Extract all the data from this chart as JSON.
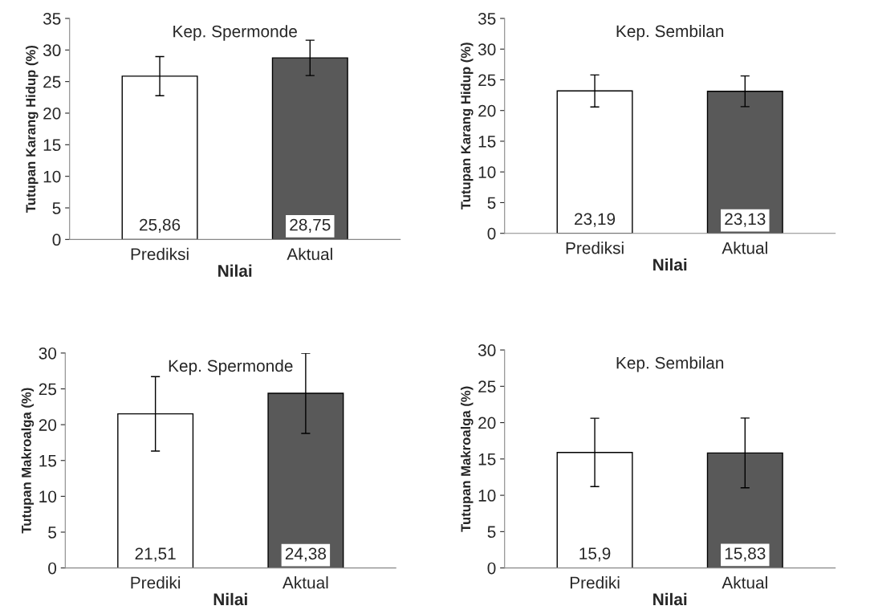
{
  "chart_data": [
    {
      "type": "bar",
      "title": "Kep. Spermonde",
      "xlabel": "Nilai",
      "ylabel": "Tutupan Karang Hidup (%)",
      "categories": [
        "Prediksi",
        "Aktual"
      ],
      "values": [
        25.86,
        28.75
      ],
      "colors": [
        "#ffffff",
        "#595959"
      ],
      "errors": [
        3.1,
        2.8
      ],
      "value_labels": [
        "25,86",
        "28,75"
      ],
      "ylim": [
        0,
        35
      ],
      "yticks": [
        0,
        5,
        10,
        15,
        20,
        25,
        30,
        35
      ]
    },
    {
      "type": "bar",
      "title": "Kep. Sembilan",
      "xlabel": "Nilai",
      "ylabel": "Tutupan Karang Hidup (%)",
      "categories": [
        "Prediksi",
        "Aktual"
      ],
      "values": [
        23.19,
        23.13
      ],
      "colors": [
        "#ffffff",
        "#595959"
      ],
      "errors": [
        2.6,
        2.5
      ],
      "value_labels": [
        "23,19",
        "23,13"
      ],
      "ylim": [
        0,
        35
      ],
      "yticks": [
        0,
        5,
        10,
        15,
        20,
        25,
        30,
        35
      ]
    },
    {
      "type": "bar",
      "title": "Kep. Spermonde",
      "xlabel": "Nilai",
      "ylabel": "Tutupan Makroalga (%)",
      "categories": [
        "Prediki",
        "Aktual"
      ],
      "values": [
        21.51,
        24.38
      ],
      "colors": [
        "#ffffff",
        "#595959"
      ],
      "errors": [
        5.2,
        5.6
      ],
      "value_labels": [
        "21,51",
        "24,38"
      ],
      "ylim": [
        0,
        30
      ],
      "yticks": [
        0,
        5,
        10,
        15,
        20,
        25,
        30
      ]
    },
    {
      "type": "bar",
      "title": "Kep. Sembilan",
      "xlabel": "Nilai",
      "ylabel": "Tutupan Makroalga (%)",
      "categories": [
        "Prediki",
        "Aktual"
      ],
      "values": [
        15.9,
        15.83
      ],
      "colors": [
        "#ffffff",
        "#595959"
      ],
      "errors": [
        4.7,
        4.8
      ],
      "value_labels": [
        "15,9",
        "15,83"
      ],
      "ylim": [
        0,
        30
      ],
      "yticks": [
        0,
        5,
        10,
        15,
        20,
        25,
        30
      ]
    }
  ]
}
